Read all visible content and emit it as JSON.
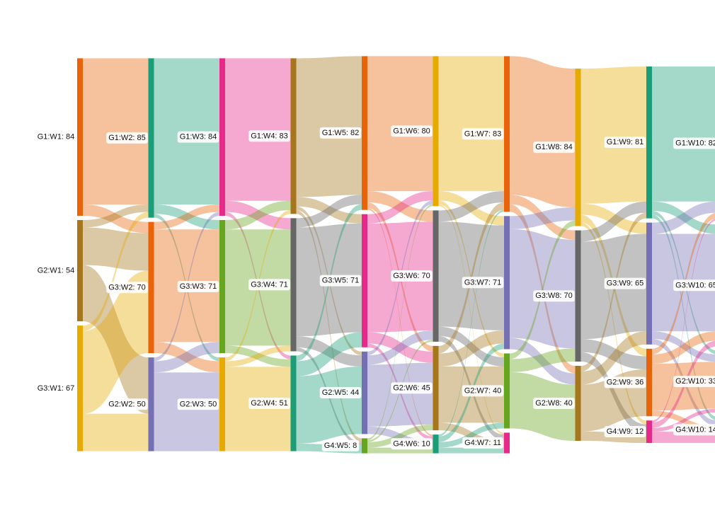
{
  "chart_data": {
    "type": "sankey",
    "columns": [
      [
        {
          "label": "G1:W1: 84",
          "value": 84,
          "color": "#e8630a"
        },
        {
          "label": "G2:W1: 54",
          "value": 54,
          "color": "#a6761d"
        },
        {
          "label": "G3:W1: 67",
          "value": 67,
          "color": "#e6ab02"
        }
      ],
      [
        {
          "label": "G1:W2: 85",
          "value": 85,
          "color": "#1b9e77"
        },
        {
          "label": "G3:W2: 70",
          "value": 70,
          "color": "#e8630a"
        },
        {
          "label": "G2:W2: 50",
          "value": 50,
          "color": "#7570b3"
        }
      ],
      [
        {
          "label": "G1:W3: 84",
          "value": 84,
          "color": "#e7298a"
        },
        {
          "label": "G3:W3: 71",
          "value": 71,
          "color": "#66a61e"
        },
        {
          "label": "G2:W3: 50",
          "value": 50,
          "color": "#e6ab02"
        }
      ],
      [
        {
          "label": "G1:W4: 83",
          "value": 83,
          "color": "#a6761d"
        },
        {
          "label": "G3:W4: 71",
          "value": 71,
          "color": "#666666"
        },
        {
          "label": "G2:W4: 51",
          "value": 51,
          "color": "#1b9e77"
        }
      ],
      [
        {
          "label": "G1:W5: 82",
          "value": 82,
          "color": "#e8630a"
        },
        {
          "label": "G3:W5: 71",
          "value": 71,
          "color": "#e7298a"
        },
        {
          "label": "G2:W5: 44",
          "value": 44,
          "color": "#7570b3"
        },
        {
          "label": "G4:W5: 8",
          "value": 8,
          "color": "#66a61e"
        }
      ],
      [
        {
          "label": "G1:W6: 80",
          "value": 80,
          "color": "#e6ab02"
        },
        {
          "label": "G3:W6: 70",
          "value": 70,
          "color": "#666666"
        },
        {
          "label": "G2:W6: 45",
          "value": 45,
          "color": "#a6761d"
        },
        {
          "label": "G4:W6: 10",
          "value": 10,
          "color": "#1b9e77"
        }
      ],
      [
        {
          "label": "G1:W7: 83",
          "value": 83,
          "color": "#e8630a"
        },
        {
          "label": "G3:W7: 71",
          "value": 71,
          "color": "#7570b3"
        },
        {
          "label": "G2:W7: 40",
          "value": 40,
          "color": "#66a61e"
        },
        {
          "label": "G4:W7: 11",
          "value": 11,
          "color": "#e7298a"
        }
      ],
      [
        {
          "label": "G1:W8: 84",
          "value": 84,
          "color": "#e6ab02"
        },
        {
          "label": "G3:W8: 70",
          "value": 70,
          "color": "#666666"
        },
        {
          "label": "G2:W8: 40",
          "value": 40,
          "color": "#a6761d"
        }
      ],
      [
        {
          "label": "G1:W9: 81",
          "value": 81,
          "color": "#1b9e77"
        },
        {
          "label": "G3:W9: 65",
          "value": 65,
          "color": "#7570b3"
        },
        {
          "label": "G2:W9: 36",
          "value": 36,
          "color": "#e8630a"
        },
        {
          "label": "G4:W9: 12",
          "value": 12,
          "color": "#e7298a"
        }
      ],
      [
        {
          "label": "G1:W10: 82",
          "value": 82,
          "color": "#66a61e"
        },
        {
          "label": "G3:W10: 65",
          "value": 65,
          "color": "#a6761d"
        },
        {
          "label": "G2:W10: 33",
          "value": 33,
          "color": "#e6ab02"
        },
        {
          "label": "G4:W10: 14",
          "value": 14,
          "color": "#999999"
        }
      ]
    ],
    "links": [
      {
        "from": [
          0,
          0
        ],
        "to": [
          1,
          0
        ],
        "value": 78
      },
      {
        "from": [
          0,
          0
        ],
        "to": [
          1,
          1
        ],
        "value": 6
      },
      {
        "from": [
          0,
          1
        ],
        "to": [
          1,
          0
        ],
        "value": 4
      },
      {
        "from": [
          0,
          1
        ],
        "to": [
          1,
          1
        ],
        "value": 20
      },
      {
        "from": [
          0,
          1
        ],
        "to": [
          1,
          2
        ],
        "value": 30
      },
      {
        "from": [
          0,
          2
        ],
        "to": [
          1,
          0
        ],
        "value": 3
      },
      {
        "from": [
          0,
          2
        ],
        "to": [
          1,
          1
        ],
        "value": 44
      },
      {
        "from": [
          0,
          2
        ],
        "to": [
          1,
          2
        ],
        "value": 20
      },
      {
        "from": [
          1,
          0
        ],
        "to": [
          2,
          0
        ],
        "value": 78
      },
      {
        "from": [
          1,
          0
        ],
        "to": [
          2,
          1
        ],
        "value": 5
      },
      {
        "from": [
          1,
          0
        ],
        "to": [
          2,
          2
        ],
        "value": 2
      },
      {
        "from": [
          1,
          1
        ],
        "to": [
          2,
          0
        ],
        "value": 4
      },
      {
        "from": [
          1,
          1
        ],
        "to": [
          2,
          1
        ],
        "value": 60
      },
      {
        "from": [
          1,
          1
        ],
        "to": [
          2,
          2
        ],
        "value": 6
      },
      {
        "from": [
          1,
          2
        ],
        "to": [
          2,
          0
        ],
        "value": 2
      },
      {
        "from": [
          1,
          2
        ],
        "to": [
          2,
          1
        ],
        "value": 6
      },
      {
        "from": [
          1,
          2
        ],
        "to": [
          2,
          2
        ],
        "value": 42
      },
      {
        "from": [
          2,
          0
        ],
        "to": [
          3,
          0
        ],
        "value": 76
      },
      {
        "from": [
          2,
          0
        ],
        "to": [
          3,
          1
        ],
        "value": 6
      },
      {
        "from": [
          2,
          0
        ],
        "to": [
          3,
          2
        ],
        "value": 2
      },
      {
        "from": [
          2,
          1
        ],
        "to": [
          3,
          0
        ],
        "value": 5
      },
      {
        "from": [
          2,
          1
        ],
        "to": [
          3,
          1
        ],
        "value": 62
      },
      {
        "from": [
          2,
          1
        ],
        "to": [
          3,
          2
        ],
        "value": 4
      },
      {
        "from": [
          2,
          2
        ],
        "to": [
          3,
          0
        ],
        "value": 2
      },
      {
        "from": [
          2,
          2
        ],
        "to": [
          3,
          1
        ],
        "value": 3
      },
      {
        "from": [
          2,
          2
        ],
        "to": [
          3,
          2
        ],
        "value": 45
      },
      {
        "from": [
          3,
          0
        ],
        "to": [
          4,
          0
        ],
        "value": 74
      },
      {
        "from": [
          3,
          0
        ],
        "to": [
          4,
          1
        ],
        "value": 5
      },
      {
        "from": [
          3,
          0
        ],
        "to": [
          4,
          2
        ],
        "value": 2
      },
      {
        "from": [
          3,
          0
        ],
        "to": [
          4,
          3
        ],
        "value": 2
      },
      {
        "from": [
          3,
          1
        ],
        "to": [
          4,
          0
        ],
        "value": 5
      },
      {
        "from": [
          3,
          1
        ],
        "to": [
          4,
          1
        ],
        "value": 58
      },
      {
        "from": [
          3,
          1
        ],
        "to": [
          4,
          2
        ],
        "value": 6
      },
      {
        "from": [
          3,
          1
        ],
        "to": [
          4,
          3
        ],
        "value": 2
      },
      {
        "from": [
          3,
          2
        ],
        "to": [
          4,
          0
        ],
        "value": 3
      },
      {
        "from": [
          3,
          2
        ],
        "to": [
          4,
          1
        ],
        "value": 8
      },
      {
        "from": [
          3,
          2
        ],
        "to": [
          4,
          2
        ],
        "value": 36
      },
      {
        "from": [
          3,
          2
        ],
        "to": [
          4,
          3
        ],
        "value": 4
      },
      {
        "from": [
          4,
          0
        ],
        "to": [
          5,
          0
        ],
        "value": 72
      },
      {
        "from": [
          4,
          0
        ],
        "to": [
          5,
          1
        ],
        "value": 6
      },
      {
        "from": [
          4,
          0
        ],
        "to": [
          5,
          2
        ],
        "value": 3
      },
      {
        "from": [
          4,
          0
        ],
        "to": [
          5,
          3
        ],
        "value": 1
      },
      {
        "from": [
          4,
          1
        ],
        "to": [
          5,
          0
        ],
        "value": 5
      },
      {
        "from": [
          4,
          1
        ],
        "to": [
          5,
          1
        ],
        "value": 58
      },
      {
        "from": [
          4,
          1
        ],
        "to": [
          5,
          2
        ],
        "value": 6
      },
      {
        "from": [
          4,
          1
        ],
        "to": [
          5,
          3
        ],
        "value": 2
      },
      {
        "from": [
          4,
          2
        ],
        "to": [
          5,
          0
        ],
        "value": 2
      },
      {
        "from": [
          4,
          2
        ],
        "to": [
          5,
          1
        ],
        "value": 5
      },
      {
        "from": [
          4,
          2
        ],
        "to": [
          5,
          2
        ],
        "value": 33
      },
      {
        "from": [
          4,
          2
        ],
        "to": [
          5,
          3
        ],
        "value": 4
      },
      {
        "from": [
          4,
          3
        ],
        "to": [
          5,
          0
        ],
        "value": 1
      },
      {
        "from": [
          4,
          3
        ],
        "to": [
          5,
          1
        ],
        "value": 1
      },
      {
        "from": [
          4,
          3
        ],
        "to": [
          5,
          2
        ],
        "value": 3
      },
      {
        "from": [
          4,
          3
        ],
        "to": [
          5,
          3
        ],
        "value": 3
      },
      {
        "from": [
          5,
          0
        ],
        "to": [
          6,
          0
        ],
        "value": 72
      },
      {
        "from": [
          5,
          0
        ],
        "to": [
          6,
          1
        ],
        "value": 5
      },
      {
        "from": [
          5,
          0
        ],
        "to": [
          6,
          2
        ],
        "value": 2
      },
      {
        "from": [
          5,
          0
        ],
        "to": [
          6,
          3
        ],
        "value": 1
      },
      {
        "from": [
          5,
          1
        ],
        "to": [
          6,
          0
        ],
        "value": 6
      },
      {
        "from": [
          5,
          1
        ],
        "to": [
          6,
          1
        ],
        "value": 56
      },
      {
        "from": [
          5,
          1
        ],
        "to": [
          6,
          2
        ],
        "value": 5
      },
      {
        "from": [
          5,
          1
        ],
        "to": [
          6,
          3
        ],
        "value": 3
      },
      {
        "from": [
          5,
          2
        ],
        "to": [
          6,
          0
        ],
        "value": 4
      },
      {
        "from": [
          5,
          2
        ],
        "to": [
          6,
          1
        ],
        "value": 7
      },
      {
        "from": [
          5,
          2
        ],
        "to": [
          6,
          2
        ],
        "value": 30
      },
      {
        "from": [
          5,
          2
        ],
        "to": [
          6,
          3
        ],
        "value": 4
      },
      {
        "from": [
          5,
          3
        ],
        "to": [
          6,
          0
        ],
        "value": 1
      },
      {
        "from": [
          5,
          3
        ],
        "to": [
          6,
          1
        ],
        "value": 3
      },
      {
        "from": [
          5,
          3
        ],
        "to": [
          6,
          2
        ],
        "value": 3
      },
      {
        "from": [
          5,
          3
        ],
        "to": [
          6,
          3
        ],
        "value": 3
      },
      {
        "from": [
          6,
          0
        ],
        "to": [
          7,
          0
        ],
        "value": 74
      },
      {
        "from": [
          6,
          0
        ],
        "to": [
          7,
          1
        ],
        "value": 5
      },
      {
        "from": [
          6,
          0
        ],
        "to": [
          7,
          2
        ],
        "value": 4
      },
      {
        "from": [
          6,
          1
        ],
        "to": [
          7,
          0
        ],
        "value": 7
      },
      {
        "from": [
          6,
          1
        ],
        "to": [
          7,
          1
        ],
        "value": 58
      },
      {
        "from": [
          6,
          1
        ],
        "to": [
          7,
          2
        ],
        "value": 6
      },
      {
        "from": [
          6,
          2
        ],
        "to": [
          7,
          0
        ],
        "value": 3
      },
      {
        "from": [
          6,
          2
        ],
        "to": [
          7,
          1
        ],
        "value": 7
      },
      {
        "from": [
          6,
          2
        ],
        "to": [
          7,
          2
        ],
        "value": 30
      },
      {
        "from": [
          7,
          0
        ],
        "to": [
          8,
          0
        ],
        "value": 72
      },
      {
        "from": [
          7,
          0
        ],
        "to": [
          8,
          1
        ],
        "value": 6
      },
      {
        "from": [
          7,
          0
        ],
        "to": [
          8,
          2
        ],
        "value": 4
      },
      {
        "from": [
          7,
          0
        ],
        "to": [
          8,
          3
        ],
        "value": 2
      },
      {
        "from": [
          7,
          1
        ],
        "to": [
          8,
          0
        ],
        "value": 6
      },
      {
        "from": [
          7,
          1
        ],
        "to": [
          8,
          1
        ],
        "value": 52
      },
      {
        "from": [
          7,
          1
        ],
        "to": [
          8,
          2
        ],
        "value": 7
      },
      {
        "from": [
          7,
          1
        ],
        "to": [
          8,
          3
        ],
        "value": 5
      },
      {
        "from": [
          7,
          2
        ],
        "to": [
          8,
          0
        ],
        "value": 3
      },
      {
        "from": [
          7,
          2
        ],
        "to": [
          8,
          1
        ],
        "value": 7
      },
      {
        "from": [
          7,
          2
        ],
        "to": [
          8,
          2
        ],
        "value": 25
      },
      {
        "from": [
          7,
          2
        ],
        "to": [
          8,
          3
        ],
        "value": 5
      },
      {
        "from": [
          8,
          0
        ],
        "to": [
          9,
          0
        ],
        "value": 72
      },
      {
        "from": [
          8,
          0
        ],
        "to": [
          9,
          1
        ],
        "value": 5
      },
      {
        "from": [
          8,
          0
        ],
        "to": [
          9,
          2
        ],
        "value": 2
      },
      {
        "from": [
          8,
          0
        ],
        "to": [
          9,
          3
        ],
        "value": 2
      },
      {
        "from": [
          8,
          1
        ],
        "to": [
          9,
          0
        ],
        "value": 6
      },
      {
        "from": [
          8,
          1
        ],
        "to": [
          9,
          1
        ],
        "value": 52
      },
      {
        "from": [
          8,
          1
        ],
        "to": [
          9,
          2
        ],
        "value": 4
      },
      {
        "from": [
          8,
          1
        ],
        "to": [
          9,
          3
        ],
        "value": 3
      },
      {
        "from": [
          8,
          2
        ],
        "to": [
          9,
          0
        ],
        "value": 3
      },
      {
        "from": [
          8,
          2
        ],
        "to": [
          9,
          1
        ],
        "value": 5
      },
      {
        "from": [
          8,
          2
        ],
        "to": [
          9,
          2
        ],
        "value": 25
      },
      {
        "from": [
          8,
          2
        ],
        "to": [
          9,
          3
        ],
        "value": 3
      },
      {
        "from": [
          8,
          3
        ],
        "to": [
          9,
          0
        ],
        "value": 1
      },
      {
        "from": [
          8,
          3
        ],
        "to": [
          9,
          1
        ],
        "value": 3
      },
      {
        "from": [
          8,
          3
        ],
        "to": [
          9,
          2
        ],
        "value": 2
      },
      {
        "from": [
          8,
          3
        ],
        "to": [
          9,
          3
        ],
        "value": 6
      }
    ]
  }
}
